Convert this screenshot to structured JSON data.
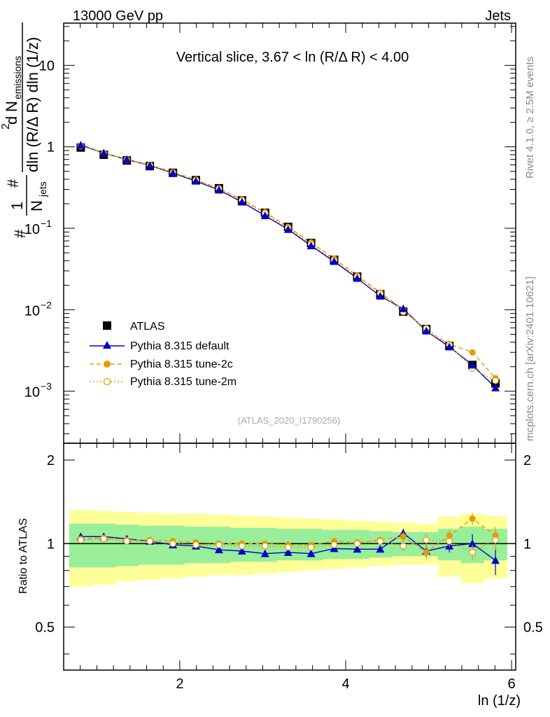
{
  "header": {
    "energy": "13000 GeV pp",
    "process": "Jets",
    "side_top": "Rivet 4.1.0, ≥ 2.5M events",
    "side_bottom": "mcplots.cern.ch [arXiv:2401.10621]"
  },
  "chart_data": {
    "type": "line",
    "title": "Vertical slice, 3.67 < ln (R/Δ R) < 4.00",
    "analysis_tag": "(ATLAS_2020_I1790256)",
    "xlabel": "ln (1/z)",
    "ylabel": {
      "top_sup": "2",
      "main": "d",
      "n_sym": "N",
      "n_sub": "emissions",
      "hash": "#",
      "hash2": "#",
      "denominator": "dln (R/Δ R) dln (1/z)",
      "one": "1",
      "njets": "N",
      "njets_sub": "jets"
    },
    "ratio_ylabel": "Ratio to ATLAS",
    "xlim": [
      0.6,
      6.05
    ],
    "ylim_main": [
      0.00023,
      33
    ],
    "ylim_ratio": [
      0.35,
      2.3
    ],
    "x_ticks": [
      2,
      4,
      6
    ],
    "x_tick_labels": [
      "2",
      "4",
      "6"
    ],
    "y_ticks_main": [
      {
        "value": 10,
        "label": "10"
      },
      {
        "value": 1,
        "label": "1"
      },
      {
        "value": 0.1,
        "base": "10",
        "exp": "−1"
      },
      {
        "value": 0.01,
        "base": "10",
        "exp": "−2"
      },
      {
        "value": 0.001,
        "base": "10",
        "exp": "−3"
      }
    ],
    "y_ticks_ratio": [
      {
        "value": 2,
        "label": "2"
      },
      {
        "value": 1,
        "label": "1"
      },
      {
        "value": 0.5,
        "label": "0.5"
      }
    ],
    "bin_edges": [
      0.667,
      0.944,
      1.222,
      1.5,
      1.778,
      2.056,
      2.333,
      2.611,
      2.889,
      3.167,
      3.444,
      3.722,
      4.0,
      4.278,
      4.556,
      4.833,
      5.111,
      5.389,
      5.667,
      5.944
    ],
    "x": [
      0.806,
      1.083,
      1.361,
      1.639,
      1.917,
      2.194,
      2.472,
      2.75,
      3.028,
      3.306,
      3.583,
      3.861,
      4.139,
      4.417,
      4.694,
      4.972,
      5.25,
      5.528,
      5.806
    ],
    "band_green": [
      [
        0.82,
        1.18
      ],
      [
        0.82,
        1.18
      ],
      [
        0.83,
        1.17
      ],
      [
        0.84,
        1.16
      ],
      [
        0.84,
        1.16
      ],
      [
        0.85,
        1.15
      ],
      [
        0.85,
        1.15
      ],
      [
        0.86,
        1.14
      ],
      [
        0.86,
        1.14
      ],
      [
        0.87,
        1.13
      ],
      [
        0.87,
        1.13
      ],
      [
        0.88,
        1.12
      ],
      [
        0.88,
        1.12
      ],
      [
        0.89,
        1.11
      ],
      [
        0.9,
        1.1
      ],
      [
        0.9,
        1.1
      ],
      [
        0.87,
        1.13
      ],
      [
        0.85,
        1.15
      ],
      [
        0.87,
        1.13
      ]
    ],
    "band_yellow": [
      [
        0.7,
        1.32
      ],
      [
        0.71,
        1.31
      ],
      [
        0.73,
        1.3
      ],
      [
        0.74,
        1.29
      ],
      [
        0.75,
        1.28
      ],
      [
        0.76,
        1.28
      ],
      [
        0.77,
        1.27
      ],
      [
        0.77,
        1.26
      ],
      [
        0.78,
        1.25
      ],
      [
        0.79,
        1.24
      ],
      [
        0.8,
        1.23
      ],
      [
        0.81,
        1.22
      ],
      [
        0.82,
        1.21
      ],
      [
        0.83,
        1.2
      ],
      [
        0.84,
        1.19
      ],
      [
        0.84,
        1.18
      ],
      [
        0.76,
        1.25
      ],
      [
        0.72,
        1.28
      ],
      [
        0.75,
        1.26
      ]
    ],
    "series": [
      {
        "name": "ATLAS",
        "color": "#000000",
        "marker": "square",
        "values": [
          0.98,
          0.8,
          0.68,
          0.58,
          0.48,
          0.39,
          0.31,
          0.22,
          0.155,
          0.104,
          0.066,
          0.041,
          0.0255,
          0.0155,
          0.0095,
          0.0058,
          0.0036,
          0.0021,
          0.00125
        ]
      },
      {
        "name": "Pythia 8.315 default",
        "color": "#0000cc",
        "marker": "triangle",
        "dash": "",
        "values": [
          1.05,
          0.84,
          0.7,
          0.59,
          0.475,
          0.38,
          0.295,
          0.21,
          0.143,
          0.097,
          0.061,
          0.0392,
          0.0243,
          0.0147,
          0.0103,
          0.0055,
          0.0035,
          0.0021,
          0.0011
        ],
        "ratio": [
          1.06,
          1.06,
          1.04,
          1.02,
          0.99,
          0.98,
          0.95,
          0.94,
          0.92,
          0.93,
          0.92,
          0.96,
          0.955,
          0.955,
          1.09,
          0.94,
          0.98,
          1.0,
          0.87
        ],
        "ratio_err": [
          0.01,
          0.01,
          0.01,
          0.01,
          0.01,
          0.01,
          0.01,
          0.01,
          0.01,
          0.01,
          0.01,
          0.01,
          0.015,
          0.02,
          0.04,
          0.05,
          0.05,
          0.08,
          0.1
        ]
      },
      {
        "name": "Pythia 8.315 tune-2c",
        "color": "#e69b00",
        "marker": "filled-circle",
        "dash": "6,4",
        "values": [
          1.03,
          0.84,
          0.7,
          0.6,
          0.49,
          0.395,
          0.31,
          0.225,
          0.158,
          0.104,
          0.067,
          0.0425,
          0.0262,
          0.0163,
          0.0101,
          0.0054,
          0.0038,
          0.003,
          0.00145
        ],
        "ratio": [
          1.04,
          1.05,
          1.03,
          1.03,
          1.02,
          1.01,
          1.0,
          1.0,
          1.0,
          0.99,
          0.99,
          1.02,
          1.01,
          1.03,
          1.06,
          0.93,
          1.07,
          1.23,
          1.07
        ],
        "ratio_err": [
          0.01,
          0.01,
          0.01,
          0.01,
          0.01,
          0.01,
          0.01,
          0.01,
          0.01,
          0.01,
          0.01,
          0.01,
          0.015,
          0.02,
          0.04,
          0.05,
          0.05,
          0.06,
          0.08
        ]
      },
      {
        "name": "Pythia 8.315 tune-2m",
        "color": "#e69b00",
        "marker": "open-circle",
        "dash": "2,3",
        "values": [
          1.02,
          0.83,
          0.69,
          0.59,
          0.48,
          0.39,
          0.305,
          0.22,
          0.153,
          0.101,
          0.064,
          0.0405,
          0.0255,
          0.0158,
          0.0094,
          0.0059,
          0.0037,
          0.0019,
          0.00135
        ],
        "ratio": [
          1.03,
          1.04,
          1.02,
          1.02,
          1.0,
          0.99,
          0.99,
          0.98,
          0.98,
          0.97,
          0.97,
          0.99,
          1.0,
          1.02,
          0.98,
          1.03,
          1.02,
          0.93,
          1.03
        ],
        "ratio_err": [
          0.01,
          0.01,
          0.01,
          0.01,
          0.01,
          0.01,
          0.01,
          0.01,
          0.01,
          0.01,
          0.01,
          0.01,
          0.015,
          0.02,
          0.04,
          0.05,
          0.05,
          0.06,
          0.08
        ]
      }
    ],
    "legend_position": "lower-left"
  }
}
